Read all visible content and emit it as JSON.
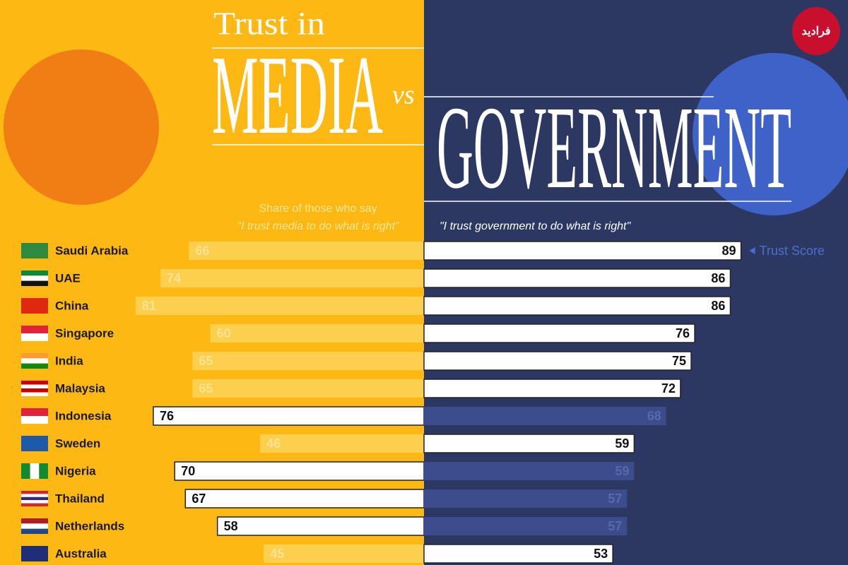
{
  "header": {
    "title_small": "Trust in",
    "title_left": "MEDIA",
    "title_vs": "vs",
    "title_right": "GOVERNMENT",
    "logo": "فرادید"
  },
  "chart_data": {
    "type": "butterfly",
    "subtitle": "Share of those who say",
    "left_label": "\"I trust media to do what is right\"",
    "right_label": "\"I trust government to do what is right\"",
    "annotation": "Trust Score",
    "categories": [
      "Saudi Arabia",
      "UAE",
      "China",
      "Singapore",
      "India",
      "Malaysia",
      "Indonesia",
      "Sweden",
      "Nigeria",
      "Thailand",
      "Netherlands",
      "Australia"
    ],
    "series": [
      {
        "name": "Media",
        "color": "#fcd04e",
        "values": [
          66,
          74,
          81,
          60,
          65,
          65,
          76,
          46,
          70,
          67,
          58,
          45
        ]
      },
      {
        "name": "Government",
        "color": "#3d4c8c",
        "values": [
          89,
          86,
          86,
          76,
          75,
          72,
          68,
          59,
          59,
          57,
          57,
          53
        ]
      }
    ]
  }
}
